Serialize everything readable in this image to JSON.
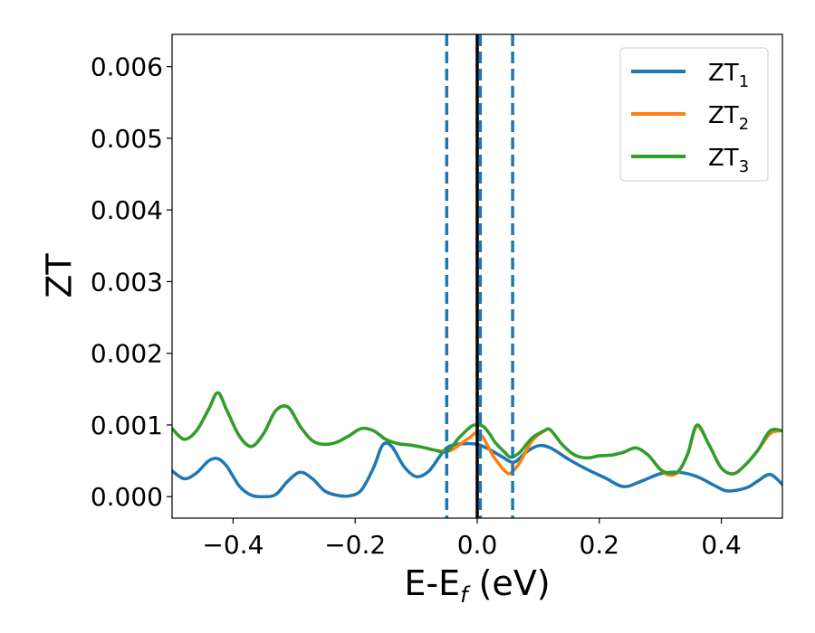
{
  "chart_data": {
    "type": "line",
    "xlabel": {
      "base": "E-E",
      "sub": "f",
      "suffix": " (eV)"
    },
    "ylabel": "ZT",
    "xlim": [
      -0.5,
      0.5
    ],
    "ylim": [
      -0.0003,
      0.00645
    ],
    "x_ticks": [
      -0.4,
      -0.2,
      0.0,
      0.2,
      0.4
    ],
    "x_tick_labels": [
      "−0.4",
      "−0.2",
      "0.0",
      "0.2",
      "0.4"
    ],
    "y_ticks": [
      0.0,
      0.001,
      0.002,
      0.003,
      0.004,
      0.005,
      0.006
    ],
    "y_tick_labels": [
      "0.000",
      "0.001",
      "0.002",
      "0.003",
      "0.004",
      "0.005",
      "0.006"
    ],
    "grid": false,
    "legend_position": "top-right",
    "vlines": [
      {
        "x": 0.0,
        "color": "#000000",
        "style": "solid"
      },
      {
        "x": -0.05,
        "color": "#1f77b4",
        "style": "dashed"
      },
      {
        "x": 0.005,
        "color": "#1f77b4",
        "style": "dashed"
      },
      {
        "x": 0.058,
        "color": "#1f77b4",
        "style": "dashed"
      }
    ],
    "series": [
      {
        "name": "ZT",
        "sub": "1",
        "color": "#1f77b4",
        "x": [
          -0.5,
          -0.48,
          -0.46,
          -0.44,
          -0.425,
          -0.41,
          -0.39,
          -0.37,
          -0.35,
          -0.33,
          -0.31,
          -0.29,
          -0.27,
          -0.25,
          -0.23,
          -0.21,
          -0.19,
          -0.17,
          -0.155,
          -0.14,
          -0.12,
          -0.1,
          -0.08,
          -0.06,
          -0.05,
          -0.04,
          -0.02,
          0.0,
          0.02,
          0.04,
          0.06,
          0.08,
          0.1,
          0.12,
          0.15,
          0.18,
          0.21,
          0.24,
          0.27,
          0.3,
          0.33,
          0.36,
          0.39,
          0.41,
          0.44,
          0.46,
          0.48,
          0.5
        ],
        "y": [
          0.00036,
          0.00025,
          0.00033,
          0.0005,
          0.00053,
          0.00042,
          0.00015,
          2e-05,
          0.0,
          3e-05,
          0.00022,
          0.00034,
          0.00025,
          8e-05,
          2e-05,
          1e-05,
          9e-05,
          0.0004,
          0.00072,
          0.0007,
          0.00042,
          0.00028,
          0.00035,
          0.00058,
          0.00068,
          0.00072,
          0.00074,
          0.00073,
          0.00066,
          0.00056,
          0.00048,
          0.00062,
          0.00071,
          0.00068,
          0.00052,
          0.00038,
          0.00026,
          0.00014,
          0.00022,
          0.00032,
          0.00034,
          0.00028,
          0.00015,
          8e-05,
          0.00012,
          0.00022,
          0.00031,
          0.00017
        ]
      },
      {
        "name": "ZT",
        "sub": "2",
        "color": "#ff7f0e",
        "x": [
          -0.5,
          -0.48,
          -0.46,
          -0.44,
          -0.425,
          -0.41,
          -0.39,
          -0.37,
          -0.35,
          -0.33,
          -0.31,
          -0.29,
          -0.27,
          -0.25,
          -0.23,
          -0.21,
          -0.19,
          -0.17,
          -0.15,
          -0.13,
          -0.11,
          -0.09,
          -0.07,
          -0.05,
          -0.04,
          -0.03,
          -0.02,
          -0.01,
          0.0,
          0.01,
          0.02,
          0.03,
          0.045,
          0.055,
          0.07,
          0.09,
          0.11,
          0.12,
          0.14,
          0.16,
          0.18,
          0.2,
          0.22,
          0.24,
          0.26,
          0.28,
          0.3,
          0.315,
          0.33,
          0.345,
          0.36,
          0.38,
          0.4,
          0.42,
          0.44,
          0.46,
          0.48,
          0.5
        ],
        "y": [
          0.00095,
          0.0008,
          0.00092,
          0.00122,
          0.00145,
          0.0012,
          0.00085,
          0.0007,
          0.00088,
          0.0012,
          0.00125,
          0.00098,
          0.00078,
          0.00073,
          0.00076,
          0.00085,
          0.00095,
          0.00092,
          0.0008,
          0.00074,
          0.00072,
          0.00069,
          0.00065,
          0.00063,
          0.00066,
          0.00072,
          0.00078,
          0.00084,
          0.0009,
          0.00082,
          0.00066,
          0.00052,
          0.00036,
          0.00033,
          0.00048,
          0.00078,
          0.00092,
          0.00093,
          0.00072,
          0.00058,
          0.00054,
          0.00057,
          0.00058,
          0.00062,
          0.00068,
          0.00058,
          0.00038,
          0.0003,
          0.00035,
          0.0006,
          0.00098,
          0.00072,
          0.0004,
          0.00032,
          0.00045,
          0.00065,
          0.00088,
          0.00092
        ]
      },
      {
        "name": "ZT",
        "sub": "3",
        "color": "#2ca02c",
        "x": [
          -0.5,
          -0.48,
          -0.46,
          -0.44,
          -0.425,
          -0.41,
          -0.39,
          -0.37,
          -0.35,
          -0.33,
          -0.31,
          -0.29,
          -0.27,
          -0.25,
          -0.23,
          -0.21,
          -0.19,
          -0.17,
          -0.15,
          -0.13,
          -0.11,
          -0.09,
          -0.07,
          -0.05,
          -0.03,
          -0.01,
          0.0,
          0.01,
          0.02,
          0.03,
          0.045,
          0.055,
          0.07,
          0.09,
          0.11,
          0.12,
          0.14,
          0.16,
          0.18,
          0.2,
          0.22,
          0.24,
          0.26,
          0.28,
          0.3,
          0.315,
          0.33,
          0.345,
          0.36,
          0.38,
          0.4,
          0.42,
          0.44,
          0.46,
          0.48,
          0.5
        ],
        "y": [
          0.00095,
          0.0008,
          0.00092,
          0.00122,
          0.00145,
          0.0012,
          0.00085,
          0.0007,
          0.00088,
          0.0012,
          0.00125,
          0.00098,
          0.00078,
          0.00073,
          0.00076,
          0.00085,
          0.00095,
          0.00092,
          0.0008,
          0.00074,
          0.00072,
          0.00069,
          0.00065,
          0.00063,
          0.00082,
          0.00098,
          0.001,
          0.00098,
          0.00088,
          0.00075,
          0.00062,
          0.00055,
          0.00062,
          0.00082,
          0.00092,
          0.00093,
          0.00072,
          0.00058,
          0.00054,
          0.00057,
          0.00058,
          0.00062,
          0.00068,
          0.00058,
          0.00038,
          0.00033,
          0.00036,
          0.0006,
          0.001,
          0.00072,
          0.0004,
          0.00032,
          0.00045,
          0.00065,
          0.00092,
          0.00092
        ]
      }
    ]
  }
}
